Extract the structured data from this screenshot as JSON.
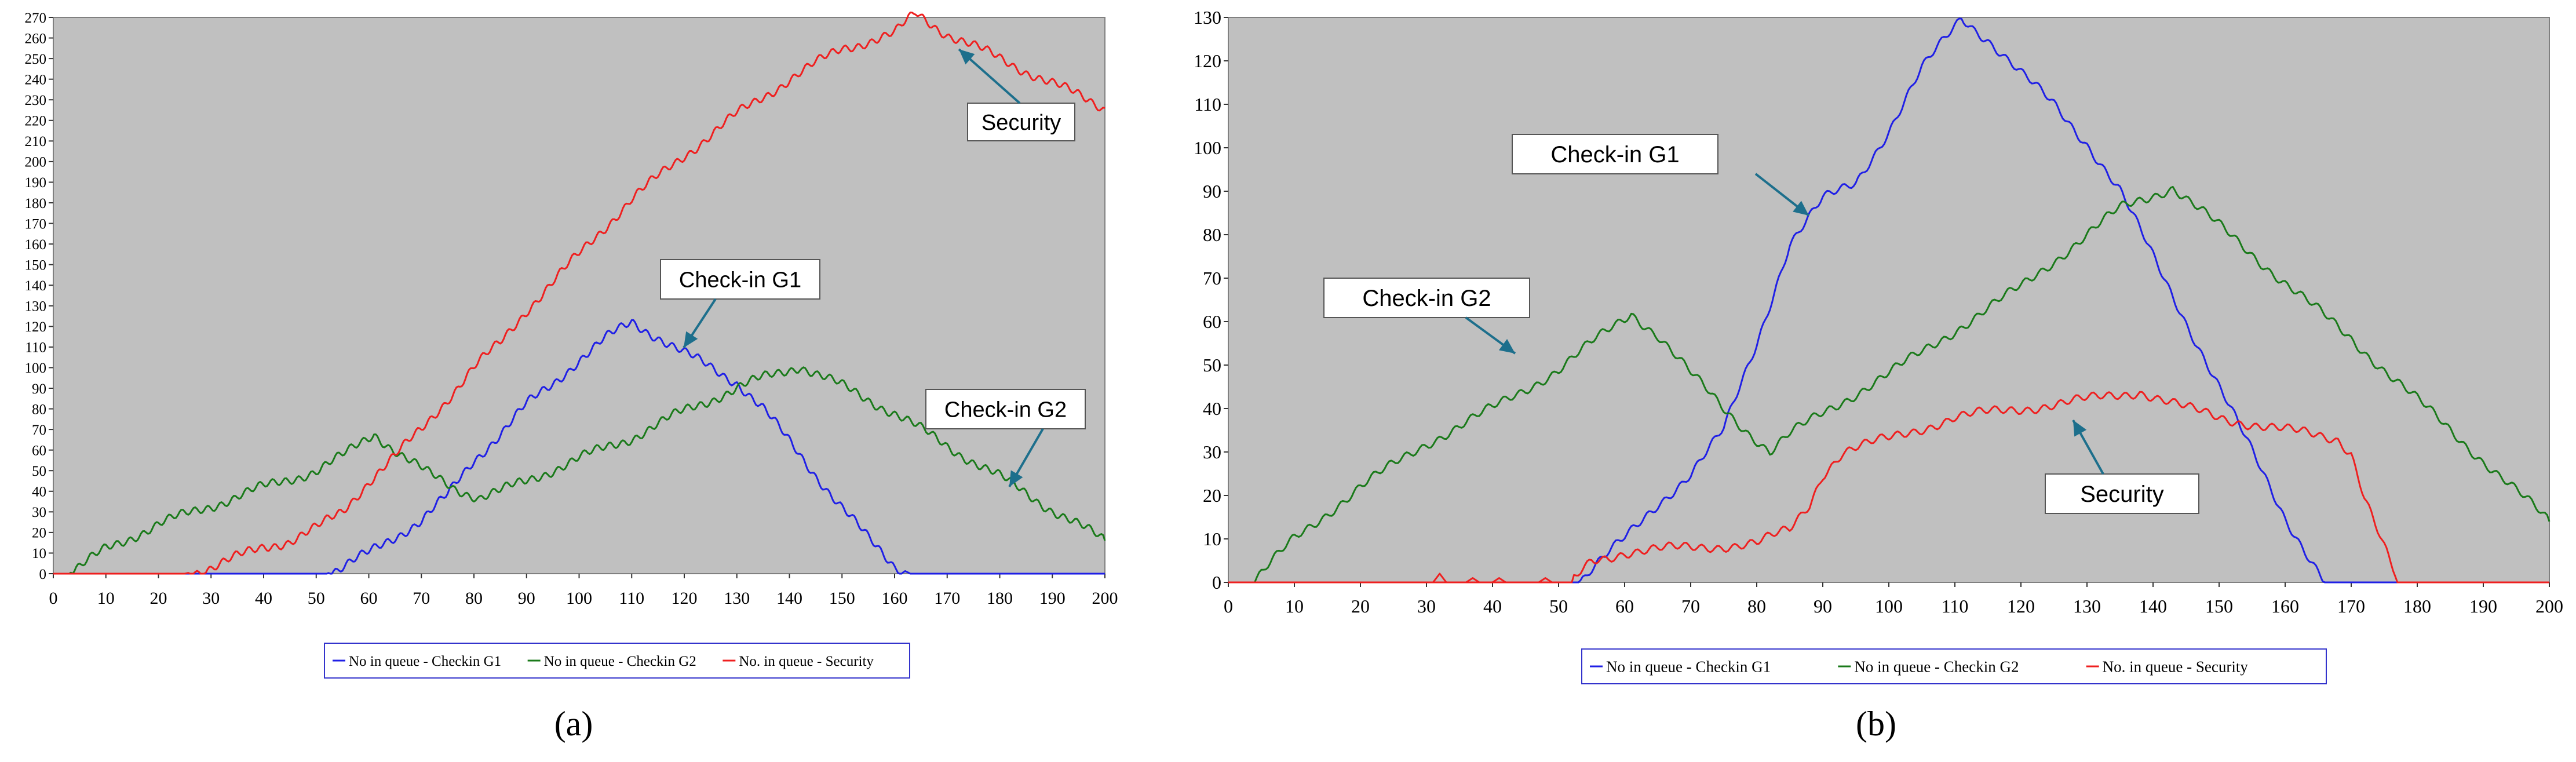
{
  "captions": {
    "a": "(a)",
    "b": "(b)"
  },
  "colors": {
    "checkin_g1": "#1f1fe6",
    "checkin_g2": "#1a7a1a",
    "security": "#ef1f1f",
    "plot_bg": "#c0c0c0",
    "callout_arrow": "#1d6f8c",
    "legend_border": "#3333cc"
  },
  "chart_data": [
    {
      "type": "line",
      "panel": "a",
      "xlim": [
        0,
        200
      ],
      "ylim": [
        0,
        270
      ],
      "x_ticks": [
        0,
        10,
        20,
        30,
        40,
        50,
        60,
        70,
        80,
        90,
        100,
        110,
        120,
        130,
        140,
        150,
        160,
        170,
        180,
        190,
        200
      ],
      "x_tick_labels": [
        "0",
        "10",
        "20",
        "30",
        "40",
        "50",
        "60",
        "70",
        "80",
        "90",
        "100",
        "110",
        "120",
        "130",
        "140",
        "150",
        "160",
        "170",
        "180",
        "190",
        "200"
      ],
      "y_ticks": [
        0,
        10,
        20,
        30,
        40,
        50,
        60,
        70,
        80,
        90,
        100,
        110,
        120,
        130,
        140,
        150,
        160,
        170,
        180,
        190,
        200,
        210,
        220,
        230,
        240,
        250,
        260,
        270
      ],
      "y_tick_labels": [
        "0",
        "10",
        "20",
        "30",
        "40",
        "50",
        "60",
        "70",
        "80",
        "90",
        "100",
        "110",
        "120",
        "130",
        "140",
        "150",
        "160",
        "170",
        "180",
        "190",
        "200",
        "210",
        "220",
        "230",
        "240",
        "250",
        "260",
        "270"
      ],
      "grid": false,
      "legend_position": "bottom-center",
      "series": [
        {
          "key": "checkin_g1",
          "name": "No in queue - Checkin G1",
          "x": [
            0,
            52,
            55,
            60,
            65,
            70,
            75,
            80,
            85,
            90,
            95,
            100,
            105,
            110,
            115,
            120,
            125,
            130,
            135,
            140,
            145,
            150,
            155,
            160,
            163,
            165,
            200
          ],
          "y": [
            0,
            0,
            3,
            10,
            18,
            26,
            38,
            55,
            68,
            82,
            92,
            104,
            114,
            122,
            115,
            107,
            100,
            93,
            80,
            64,
            48,
            32,
            17,
            4,
            0,
            0,
            0
          ]
        },
        {
          "key": "checkin_g2",
          "name": "No in queue - Checkin G2",
          "x": [
            0,
            3,
            5,
            10,
            20,
            30,
            40,
            50,
            55,
            61,
            66,
            71,
            76,
            81,
            85,
            90,
            100,
            110,
            120,
            130,
            135,
            142,
            150,
            160,
            170,
            180,
            190,
            200
          ],
          "y": [
            0,
            0,
            3,
            12,
            24,
            33,
            42,
            50,
            57,
            68,
            58,
            49,
            42,
            37,
            40,
            45,
            56,
            66,
            79,
            90,
            95,
            101,
            91,
            78,
            62,
            47,
            31,
            16
          ]
        },
        {
          "key": "security",
          "name": "No. in queue - Security",
          "x": [
            0,
            25,
            30,
            35,
            40,
            45,
            50,
            55,
            60,
            65,
            70,
            75,
            80,
            85,
            90,
            100,
            110,
            120,
            130,
            140,
            150,
            160,
            164,
            170,
            180,
            190,
            200
          ],
          "y": [
            0,
            0,
            3,
            8,
            13,
            16,
            22,
            30,
            45,
            57,
            70,
            85,
            100,
            112,
            128,
            155,
            182,
            203,
            223,
            240,
            255,
            262,
            272,
            262,
            250,
            238,
            226
          ]
        }
      ],
      "annotations": [
        {
          "text": "Security",
          "target": "security"
        },
        {
          "text": "Check-in G1",
          "target": "checkin_g1"
        },
        {
          "text": "Check-in G2",
          "target": "checkin_g2"
        }
      ]
    },
    {
      "type": "line",
      "panel": "b",
      "xlim": [
        0,
        200
      ],
      "ylim": [
        0,
        130
      ],
      "x_ticks": [
        0,
        10,
        20,
        30,
        40,
        50,
        60,
        70,
        80,
        90,
        100,
        110,
        120,
        130,
        140,
        150,
        160,
        170,
        180,
        190,
        200
      ],
      "x_tick_labels": [
        "0",
        "10",
        "20",
        "30",
        "40",
        "50",
        "60",
        "70",
        "80",
        "90",
        "100",
        "110",
        "120",
        "130",
        "140",
        "150",
        "160",
        "170",
        "180",
        "190",
        "200"
      ],
      "y_ticks": [
        0,
        10,
        20,
        30,
        40,
        50,
        60,
        70,
        80,
        90,
        100,
        110,
        120,
        130
      ],
      "y_tick_labels": [
        "0",
        "10",
        "20",
        "30",
        "40",
        "50",
        "60",
        "70",
        "80",
        "90",
        "100",
        "110",
        "120",
        "130"
      ],
      "grid": false,
      "legend_position": "bottom-center",
      "series": [
        {
          "key": "checkin_g1",
          "name": "No in queue - Checkin G1",
          "x": [
            0,
            53,
            55,
            60,
            65,
            70,
            75,
            80,
            85,
            90,
            95,
            100,
            105,
            111,
            115,
            120,
            125,
            130,
            135,
            140,
            145,
            150,
            155,
            160,
            166,
            200
          ],
          "y": [
            0,
            0,
            3,
            10,
            18,
            25,
            35,
            55,
            78,
            88,
            92,
            104,
            118,
            130,
            125,
            117,
            110,
            101,
            90,
            75,
            60,
            45,
            30,
            15,
            0,
            0
          ]
        },
        {
          "key": "checkin_g2",
          "name": "No in queue - Checkin G2",
          "x": [
            0,
            4,
            5,
            10,
            20,
            30,
            40,
            50,
            55,
            61,
            65,
            70,
            75,
            82,
            85,
            90,
            100,
            110,
            120,
            130,
            135,
            143,
            150,
            160,
            170,
            180,
            190,
            200
          ],
          "y": [
            0,
            0,
            2,
            10,
            22,
            32,
            40,
            49,
            55,
            62,
            57,
            48,
            40,
            30,
            34,
            39,
            48,
            58,
            68,
            80,
            86,
            91,
            82,
            69,
            56,
            42,
            28,
            14
          ]
        },
        {
          "key": "security",
          "name": "No. in queue - Security",
          "x": [
            0,
            52,
            55,
            60,
            70,
            80,
            85,
            88,
            90,
            93,
            95,
            100,
            110,
            120,
            130,
            138,
            145,
            150,
            160,
            168,
            170,
            172,
            175,
            177,
            200
          ],
          "y": [
            0,
            0,
            5,
            7,
            8,
            9,
            12,
            18,
            25,
            30,
            31,
            33,
            38,
            40,
            42,
            44,
            40,
            38,
            35,
            33,
            30,
            20,
            8,
            0,
            0
          ]
        },
        {
          "key": "security_blips",
          "name": "",
          "x": [
            30,
            31,
            32,
            33,
            34,
            35,
            36,
            37,
            38,
            39,
            40,
            41,
            42,
            43,
            44,
            45,
            46,
            47,
            48,
            49,
            50
          ],
          "y": [
            0,
            0,
            2,
            0,
            0,
            0,
            0,
            1,
            0,
            0,
            0,
            1,
            0,
            0,
            0,
            0,
            0,
            0,
            1,
            0,
            0
          ]
        }
      ],
      "annotations": [
        {
          "text": "Check-in G1",
          "target": "checkin_g1"
        },
        {
          "text": "Check-in G2",
          "target": "checkin_g2"
        },
        {
          "text": "Security",
          "target": "security"
        }
      ]
    }
  ]
}
